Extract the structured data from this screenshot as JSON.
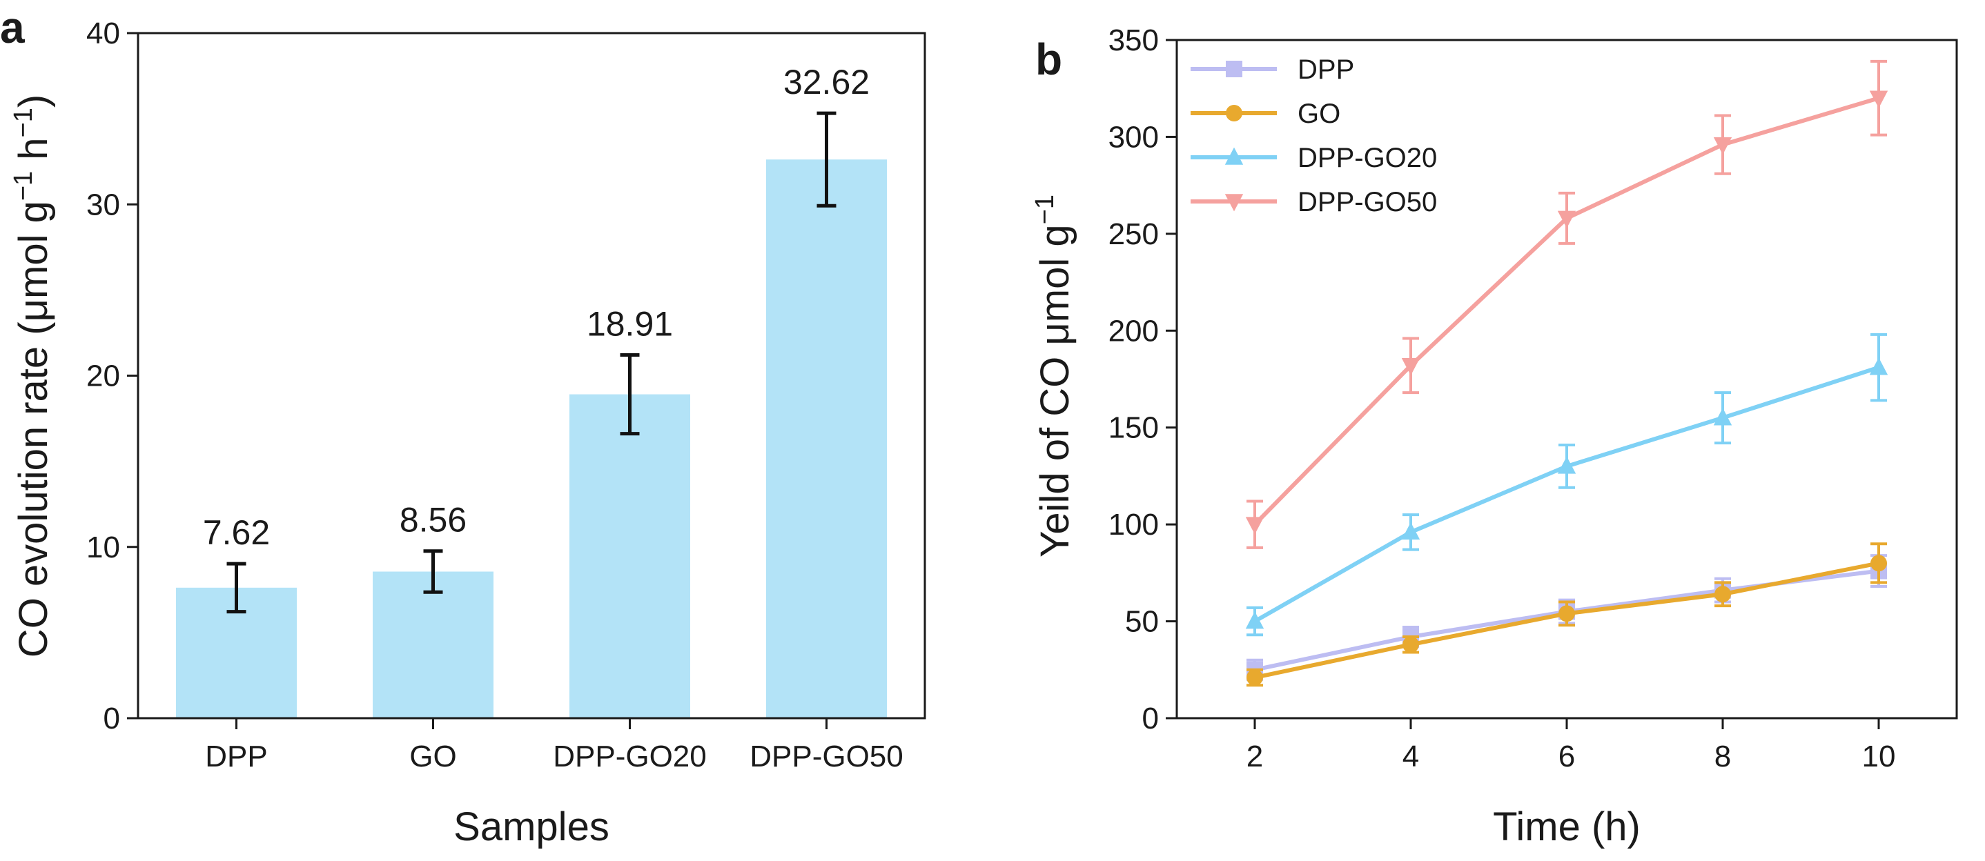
{
  "chart_data": [
    {
      "panel": "a",
      "type": "bar",
      "xlabel": "Samples",
      "ylabel": "CO evolution rate (μmol g",
      "ylabel_sup1": "−1",
      "ylabel_mid": " h",
      "ylabel_sup2": "−1",
      "ylabel_end": ")",
      "categories": [
        "DPP",
        "GO",
        "DPP-GO20",
        "DPP-GO50"
      ],
      "values": [
        7.62,
        8.56,
        18.91,
        32.62
      ],
      "value_labels": [
        "7.62",
        "8.56",
        "18.91",
        "32.62"
      ],
      "errors": [
        1.4,
        1.2,
        2.3,
        2.7
      ],
      "ylim": [
        0,
        40
      ],
      "yticks": [
        0,
        10,
        20,
        30,
        40
      ],
      "bar_color": "#b3e3f7",
      "error_color": "#111111"
    },
    {
      "panel": "b",
      "type": "line",
      "xlabel": "Time (h)",
      "ylabel": "Yeild of CO μmol g",
      "ylabel_sup": "−1",
      "x": [
        2,
        4,
        6,
        8,
        10
      ],
      "xlim": [
        1,
        11
      ],
      "xticks": [
        2,
        4,
        6,
        8,
        10
      ],
      "ylim": [
        0,
        350
      ],
      "yticks": [
        0,
        50,
        100,
        150,
        200,
        250,
        300,
        350
      ],
      "series": [
        {
          "name": "DPP",
          "values": [
            25,
            42,
            55,
            66,
            76
          ],
          "errors": [
            5,
            5,
            6,
            6,
            8
          ],
          "color": "#bdbdf2",
          "marker": "square"
        },
        {
          "name": "GO",
          "values": [
            21,
            38,
            54,
            64,
            80
          ],
          "errors": [
            4,
            4,
            6,
            6,
            10
          ],
          "color": "#e8a92e",
          "marker": "circle"
        },
        {
          "name": "DPP-GO20",
          "values": [
            50,
            96,
            130,
            155,
            181
          ],
          "errors": [
            7,
            9,
            11,
            13,
            17
          ],
          "color": "#7fd1f5",
          "marker": "triangle-up"
        },
        {
          "name": "DPP-GO50",
          "values": [
            100,
            182,
            258,
            296,
            320
          ],
          "errors": [
            12,
            14,
            13,
            15,
            19
          ],
          "color": "#f5a19e",
          "marker": "triangle-down"
        }
      ]
    }
  ]
}
